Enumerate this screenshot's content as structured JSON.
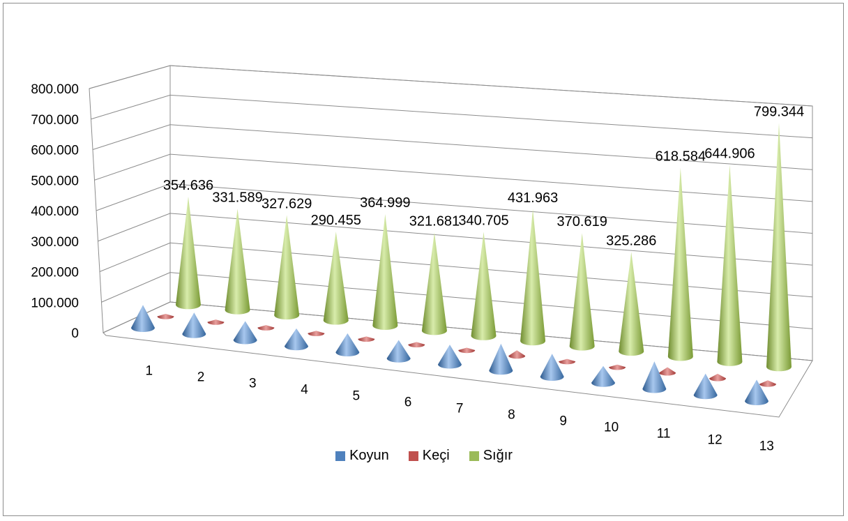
{
  "chart_data": {
    "type": "bar",
    "subtype": "3d-cone",
    "categories": [
      "1",
      "2",
      "3",
      "4",
      "5",
      "6",
      "7",
      "8",
      "9",
      "10",
      "11",
      "12",
      "13"
    ],
    "series": [
      {
        "name": "Koyun",
        "color": "#4f81bd",
        "values": [
          75000,
          70000,
          62000,
          58000,
          62000,
          60000,
          65000,
          88000,
          75000,
          55000,
          90000,
          70000,
          70000
        ]
      },
      {
        "name": "Keçi",
        "color": "#c0504d",
        "values": [
          8000,
          8000,
          8000,
          8000,
          8000,
          8000,
          8000,
          18000,
          8000,
          8000,
          18000,
          15000,
          12000
        ]
      },
      {
        "name": "Sığır",
        "color": "#9bbb59",
        "values": [
          354636,
          331589,
          327629,
          290455,
          364999,
          321681,
          340705,
          431963,
          370619,
          325286,
          618584,
          644906,
          799344
        ],
        "labels": [
          "354.636",
          "331.589",
          "327.629",
          "290.455",
          "364.999",
          "321.681",
          "340.705",
          "431.963",
          "370.619",
          "325.286",
          "618.584",
          "644.906",
          "799.344"
        ]
      }
    ],
    "yticks": [
      "0",
      "100.000",
      "200.000",
      "300.000",
      "400.000",
      "500.000",
      "600.000",
      "700.000",
      "800.000"
    ],
    "ylim": [
      0,
      800000
    ],
    "grid": true,
    "legend_position": "bottom"
  }
}
